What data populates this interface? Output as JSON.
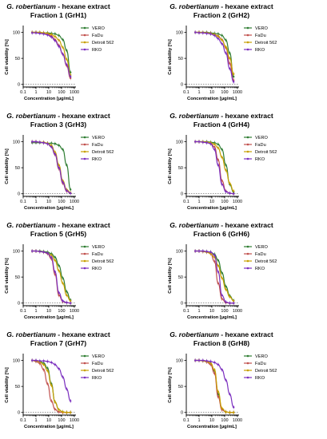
{
  "figure": {
    "title_species": "G. robertianum",
    "title_suffix": " - hexane extract"
  },
  "colors": {
    "VERO": "#2e7d32",
    "FaDu": "#c0504d",
    "Detroit 562": "#c8a000",
    "RKO": "#7b2fbf",
    "axis": "#000000"
  },
  "chart_data": [
    {
      "type": "line",
      "fraction_label": "Fraction 1 (GrH1)",
      "xlabel": "Concentration [µg/mL]",
      "ylabel": "Cell viability [%]",
      "xscale": "log",
      "xlim": [
        0.1,
        1000
      ],
      "ylim": [
        -5,
        110
      ],
      "xticks": [
        "0.1",
        "1",
        "10",
        "100",
        "1000"
      ],
      "yticks": [
        "0",
        "50",
        "100"
      ],
      "legend_placement": "top-right",
      "x": [
        0.5,
        1,
        2,
        4,
        8,
        16,
        31,
        62,
        125,
        250,
        500
      ],
      "series": [
        {
          "name": "VERO",
          "values": [
            100,
            100,
            100,
            99,
            99,
            98,
            97,
            94,
            86,
            65,
            23
          ]
        },
        {
          "name": "FaDu",
          "values": [
            100,
            100,
            99,
            99,
            97,
            93,
            86,
            75,
            58,
            36,
            12
          ]
        },
        {
          "name": "Detroit 562",
          "values": [
            100,
            100,
            100,
            99,
            98,
            96,
            92,
            85,
            71,
            48,
            18
          ]
        },
        {
          "name": "RKO",
          "values": [
            99,
            99,
            98,
            97,
            95,
            91,
            84,
            73,
            58,
            38,
            15
          ]
        }
      ]
    },
    {
      "type": "line",
      "fraction_label": "Fraction 2 (GrH2)",
      "xlabel": "Concentration [µg/mL]",
      "ylabel": "Cell viability [%]",
      "xscale": "log",
      "xlim": [
        0.1,
        1000
      ],
      "ylim": [
        -5,
        110
      ],
      "xticks": [
        "0.1",
        "1",
        "10",
        "100",
        "1000"
      ],
      "yticks": [
        "0",
        "50",
        "100"
      ],
      "legend_placement": "top-right",
      "x": [
        0.5,
        1,
        2,
        4,
        8,
        16,
        31,
        62,
        125,
        250,
        500
      ],
      "series": [
        {
          "name": "VERO",
          "values": [
            100,
            100,
            100,
            100,
            99,
            98,
            97,
            94,
            85,
            60,
            15
          ]
        },
        {
          "name": "FaDu",
          "values": [
            100,
            100,
            99,
            99,
            98,
            96,
            93,
            86,
            70,
            40,
            8
          ]
        },
        {
          "name": "Detroit 562",
          "values": [
            100,
            100,
            100,
            99,
            98,
            96,
            92,
            85,
            72,
            50,
            20
          ]
        },
        {
          "name": "RKO",
          "values": [
            100,
            99,
            99,
            98,
            97,
            94,
            88,
            78,
            60,
            30,
            5
          ]
        }
      ]
    },
    {
      "type": "line",
      "fraction_label": "Fraction 3 (GrH3)",
      "xlabel": "Concentration [µg/mL]",
      "ylabel": "Cell viability [%]",
      "xscale": "log",
      "xlim": [
        0.1,
        1000
      ],
      "ylim": [
        -5,
        110
      ],
      "xticks": [
        "0.1",
        "1",
        "10",
        "100",
        "1000"
      ],
      "yticks": [
        "0",
        "50",
        "100"
      ],
      "legend_placement": "top-right",
      "x": [
        0.5,
        1,
        2,
        4,
        8,
        16,
        31,
        62,
        125,
        250,
        500
      ],
      "series": [
        {
          "name": "VERO",
          "values": [
            98,
            98,
            98,
            98,
            97,
            97,
            96,
            93,
            85,
            55,
            8
          ]
        },
        {
          "name": "FaDu",
          "values": [
            100,
            100,
            99,
            98,
            96,
            90,
            75,
            48,
            20,
            5,
            1
          ]
        },
        {
          "name": "Detroit 562",
          "values": [
            100,
            100,
            99,
            99,
            97,
            93,
            80,
            55,
            25,
            8,
            2
          ]
        },
        {
          "name": "RKO",
          "values": [
            100,
            100,
            99,
            98,
            96,
            90,
            76,
            50,
            22,
            6,
            1
          ]
        }
      ]
    },
    {
      "type": "line",
      "fraction_label": "Fraction 4 (GrH4)",
      "xlabel": "Concentration [µg/mL]",
      "ylabel": "Cell viability [%]",
      "xscale": "log",
      "xlim": [
        0.1,
        1000
      ],
      "ylim": [
        -5,
        110
      ],
      "xticks": [
        "0.1",
        "1",
        "10",
        "100",
        "1000"
      ],
      "yticks": [
        "0",
        "50",
        "100"
      ],
      "legend_placement": "top-right",
      "x": [
        0.5,
        1,
        2,
        4,
        8,
        16,
        31,
        62,
        125,
        250,
        500
      ],
      "series": [
        {
          "name": "VERO",
          "values": [
            100,
            100,
            100,
            100,
            99,
            98,
            95,
            85,
            55,
            18,
            3
          ]
        },
        {
          "name": "FaDu",
          "values": [
            100,
            100,
            99,
            99,
            97,
            90,
            65,
            25,
            5,
            1,
            0
          ]
        },
        {
          "name": "Detroit 562",
          "values": [
            100,
            100,
            100,
            99,
            98,
            95,
            88,
            70,
            45,
            20,
            5
          ]
        },
        {
          "name": "RKO",
          "values": [
            100,
            100,
            99,
            98,
            96,
            85,
            55,
            18,
            4,
            1,
            0
          ]
        }
      ]
    },
    {
      "type": "line",
      "fraction_label": "Fraction 5 (GrH5)",
      "xlabel": "Concentration [µg/mL]",
      "ylabel": "Cell viability [%]",
      "xscale": "log",
      "xlim": [
        0.1,
        1000
      ],
      "ylim": [
        -5,
        110
      ],
      "xticks": [
        "0.1",
        "1",
        "10",
        "100",
        "1000"
      ],
      "yticks": [
        "0",
        "50",
        "100"
      ],
      "legend_placement": "top-right",
      "x": [
        0.5,
        1,
        2,
        4,
        8,
        16,
        31,
        62,
        125,
        250,
        500
      ],
      "series": [
        {
          "name": "VERO",
          "values": [
            100,
            100,
            100,
            99,
            98,
            95,
            88,
            72,
            48,
            22,
            6
          ]
        },
        {
          "name": "FaDu",
          "values": [
            100,
            100,
            99,
            98,
            95,
            85,
            55,
            15,
            3,
            1,
            0
          ]
        },
        {
          "name": "Detroit 562",
          "values": [
            100,
            100,
            99,
            98,
            96,
            92,
            82,
            62,
            38,
            15,
            4
          ]
        },
        {
          "name": "RKO",
          "values": [
            100,
            100,
            99,
            98,
            96,
            88,
            60,
            20,
            4,
            1,
            0
          ]
        }
      ]
    },
    {
      "type": "line",
      "fraction_label": "Fraction 6 (GrH6)",
      "xlabel": "Concentration [µg/mL]",
      "ylabel": "Cell viability [%]",
      "xscale": "log",
      "xlim": [
        0.1,
        1000
      ],
      "ylim": [
        -5,
        110
      ],
      "xticks": [
        "0.1",
        "1",
        "10",
        "100",
        "1000"
      ],
      "yticks": [
        "0",
        "50",
        "100"
      ],
      "legend_placement": "top-right",
      "x": [
        0.5,
        1,
        2,
        4,
        8,
        16,
        31,
        62,
        125,
        250,
        500
      ],
      "series": [
        {
          "name": "VERO",
          "values": [
            100,
            100,
            100,
            99,
            98,
            94,
            82,
            58,
            32,
            14,
            5
          ]
        },
        {
          "name": "FaDu",
          "values": [
            100,
            100,
            99,
            98,
            95,
            80,
            38,
            8,
            1,
            0,
            0
          ]
        },
        {
          "name": "Detroit 562",
          "values": [
            100,
            100,
            99,
            98,
            95,
            88,
            72,
            48,
            26,
            12,
            4
          ]
        },
        {
          "name": "RKO",
          "values": [
            100,
            100,
            100,
            99,
            98,
            92,
            60,
            15,
            2,
            0,
            0
          ]
        }
      ]
    },
    {
      "type": "line",
      "fraction_label": "Fraction 7 (GrH7)",
      "xlabel": "Concentration [µg/mL]",
      "ylabel": "Cell viability [%]",
      "xscale": "log",
      "xlim": [
        0.1,
        1000
      ],
      "ylim": [
        -5,
        110
      ],
      "xticks": [
        "0.1",
        "1",
        "10",
        "100",
        "1000"
      ],
      "yticks": [
        "0",
        "50",
        "100"
      ],
      "legend_placement": "top-right",
      "x": [
        0.5,
        1,
        2,
        4,
        8,
        16,
        31,
        62,
        125,
        250,
        500
      ],
      "series": [
        {
          "name": "VERO",
          "values": [
            100,
            99,
            98,
            95,
            85,
            55,
            20,
            5,
            1,
            0,
            0
          ]
        },
        {
          "name": "FaDu",
          "values": [
            100,
            98,
            94,
            82,
            55,
            22,
            6,
            1,
            0,
            0,
            0
          ]
        },
        {
          "name": "Detroit 562",
          "values": [
            100,
            99,
            97,
            92,
            80,
            52,
            20,
            5,
            1,
            0,
            0
          ]
        },
        {
          "name": "RKO",
          "values": [
            100,
            100,
            99,
            99,
            98,
            96,
            92,
            84,
            68,
            45,
            22
          ]
        }
      ]
    },
    {
      "type": "line",
      "fraction_label": "Fraction 8 (GrH8)",
      "xlabel": "Concentration [µg/mL]",
      "ylabel": "Cell viability [%]",
      "xscale": "log",
      "xlim": [
        0.1,
        1000
      ],
      "ylim": [
        -5,
        110
      ],
      "xticks": [
        "0.1",
        "1",
        "10",
        "100",
        "1000"
      ],
      "yticks": [
        "0",
        "50",
        "100"
      ],
      "legend_placement": "top-right",
      "x": [
        0.5,
        1,
        2,
        4,
        8,
        16,
        31,
        62,
        125,
        250,
        500
      ],
      "series": [
        {
          "name": "VERO",
          "values": [
            100,
            100,
            99,
            98,
            95,
            80,
            35,
            6,
            1,
            0,
            0
          ]
        },
        {
          "name": "FaDu",
          "values": [
            100,
            100,
            99,
            97,
            92,
            75,
            30,
            5,
            1,
            0,
            0
          ]
        },
        {
          "name": "Detroit 562",
          "values": [
            100,
            100,
            99,
            98,
            95,
            82,
            40,
            8,
            1,
            0,
            0
          ]
        },
        {
          "name": "RKO",
          "values": [
            100,
            100,
            100,
            99,
            98,
            96,
            92,
            82,
            62,
            35,
            10
          ]
        }
      ]
    }
  ]
}
